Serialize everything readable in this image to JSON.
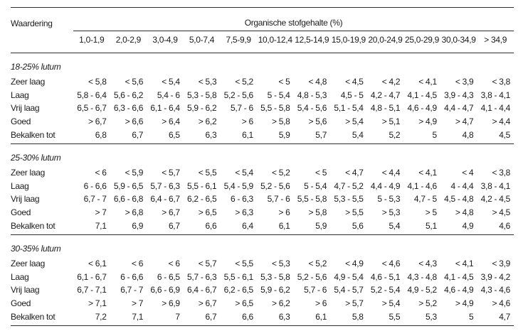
{
  "table": {
    "corner_label": "Waardering",
    "group_header": "Organische stofgehalte (%)",
    "columns": [
      "1,0-1,9",
      "2,0-2,9",
      "3,0-4,9",
      "5,0-7,4",
      "7,5-9,9",
      "10,0-12,4",
      "12,5-14,9",
      "15,0-19,9",
      "20,0-24,9",
      "25,0-29,9",
      "30,0-34,9",
      "> 34,9"
    ],
    "sections": [
      {
        "title": "18-25% lutum",
        "rows": [
          {
            "label": "Zeer laag",
            "values": [
              "< 5,8",
              "< 5,6",
              "< 5,4",
              "< 5,3",
              "< 5,2",
              "< 5",
              "< 4,8",
              "< 4,5",
              "< 4,2",
              "< 4,1",
              "< 3,9",
              "< 3,8"
            ]
          },
          {
            "label": "Laag",
            "values": [
              "5,8 - 6,4",
              "5,6 - 6,2",
              "5,4 - 6",
              "5,3 - 5,8",
              "5,2 - 5,6",
              "5 - 5,4",
              "4,8 - 5,3",
              "4,5 - 5",
              "4,2 - 4,7",
              "4,1 - 4,5",
              "3,9 - 4,3",
              "3,8 - 4,1"
            ]
          },
          {
            "label": "Vrij laag",
            "values": [
              "6,5 - 6,7",
              "6,3 - 6,6",
              "6,1 - 6,4",
              "5,9 - 6,2",
              "5,7 - 6",
              "5,5 - 5,8",
              "5,4 - 5,6",
              "5,1 - 5,4",
              "4,8 - 5,1",
              "4,6 - 4,9",
              "4,4 - 4,7",
              "4,1 - 4,4"
            ]
          },
          {
            "label": "Goed",
            "values": [
              "> 6,7",
              "> 6,6",
              "> 6,4",
              "> 6,2",
              "> 6",
              "> 5,8",
              "> 5,6",
              "> 5,4",
              "> 5,1",
              "> 4,9",
              "> 4,7",
              "> 4,4"
            ]
          },
          {
            "label": "Bekalken tot",
            "values": [
              "6,8",
              "6,7",
              "6,5",
              "6,3",
              "6,1",
              "5,9",
              "5,7",
              "5,4",
              "5,2",
              "5",
              "4,8",
              "4,5"
            ]
          }
        ]
      },
      {
        "title": "25-30% lutum",
        "rows": [
          {
            "label": "Zeer laag",
            "values": [
              "< 6",
              "< 5,9",
              "< 5,7",
              "< 5,5",
              "< 5,4",
              "< 5,2",
              "< 5",
              "< 4,7",
              "< 4,4",
              "< 4,1",
              "< 4",
              "< 3,8"
            ]
          },
          {
            "label": "Laag",
            "values": [
              "6 - 6,6",
              "5,9 - 6,5",
              "5,7 - 6,3",
              "5,5 - 6,1",
              "5,4 - 5,9",
              "5,2 - 5,6",
              "5 - 5,4",
              "4,7 - 5,2",
              "4,4 - 4,9",
              "4,1 - 4,6",
              "4 - 4,4",
              "3,8 - 4,1"
            ]
          },
          {
            "label": "Vrij laag",
            "values": [
              "6,7 - 7",
              "6,6 - 6,8",
              "6,4 - 6,7",
              "6,2 - 6,5",
              "6 - 6,3",
              "5,7 - 6",
              "5,5 - 5,8",
              "5,3 - 5,5",
              "5 - 5,3",
              "4,7 - 5",
              "4,5 - 4,8",
              "4,2 - 4,5"
            ]
          },
          {
            "label": "Goed",
            "values": [
              "> 7",
              "> 6,8",
              "> 6,7",
              "> 6,5",
              "> 6,3",
              "> 6",
              "> 5,8",
              "> 5,5",
              "> 5,3",
              "> 5",
              "> 4,8",
              "> 4,5"
            ]
          },
          {
            "label": "Bekalken tot",
            "values": [
              "7,1",
              "6,9",
              "6,7",
              "6,6",
              "6,4",
              "6,1",
              "5,9",
              "5,6",
              "5,4",
              "5,1",
              "4,9",
              "4,6"
            ]
          }
        ]
      },
      {
        "title": "30-35% lutum",
        "rows": [
          {
            "label": "Zeer laag",
            "values": [
              "< 6,1",
              "< 6",
              "< 6",
              "< 5,7",
              "< 5,5",
              "< 5,3",
              "< 5,2",
              "< 4,9",
              "< 4,6",
              "< 4,3",
              "< 4,1",
              "< 3,9"
            ]
          },
          {
            "label": "Laag",
            "values": [
              "6,1 - 6,7",
              "6 - 6,6",
              "6 - 6,5",
              "5,7 - 6,3",
              "5,5 - 6,1",
              "5,3 - 5,8",
              "5,2 - 5,6",
              "4,9 - 5,4",
              "4,6 - 5,1",
              "4,3 - 4,8",
              "4,1 - 4,5",
              "3,9 - 4,2"
            ]
          },
          {
            "label": "Vrij laag",
            "values": [
              "6,7 - 7,1",
              "6,7 - 7",
              "6,6 - 6,9",
              "6,4 - 6,7",
              "6,2 - 6,5",
              "5,9 - 6,2",
              "5,7 - 6",
              "5,4 - 5,7",
              "5,2 - 5,4",
              "4,9 - 5,2",
              "4,6 - 4,9",
              "4,3 - 4,6"
            ]
          },
          {
            "label": "Goed",
            "values": [
              "> 7,1",
              "> 7",
              "> 6,9",
              "> 6,7",
              "> 6,5",
              "> 6,2",
              "> 6",
              "> 5,7",
              "> 5,4",
              "> 5,2",
              "> 4,9",
              "> 4,6"
            ]
          },
          {
            "label": "Bekalken tot",
            "values": [
              "7,2",
              "7,1",
              "7",
              "6,7",
              "6,6",
              "6,3",
              "6,1",
              "5,8",
              "5,5",
              "5,3",
              "5",
              "4,7"
            ]
          }
        ]
      }
    ]
  }
}
